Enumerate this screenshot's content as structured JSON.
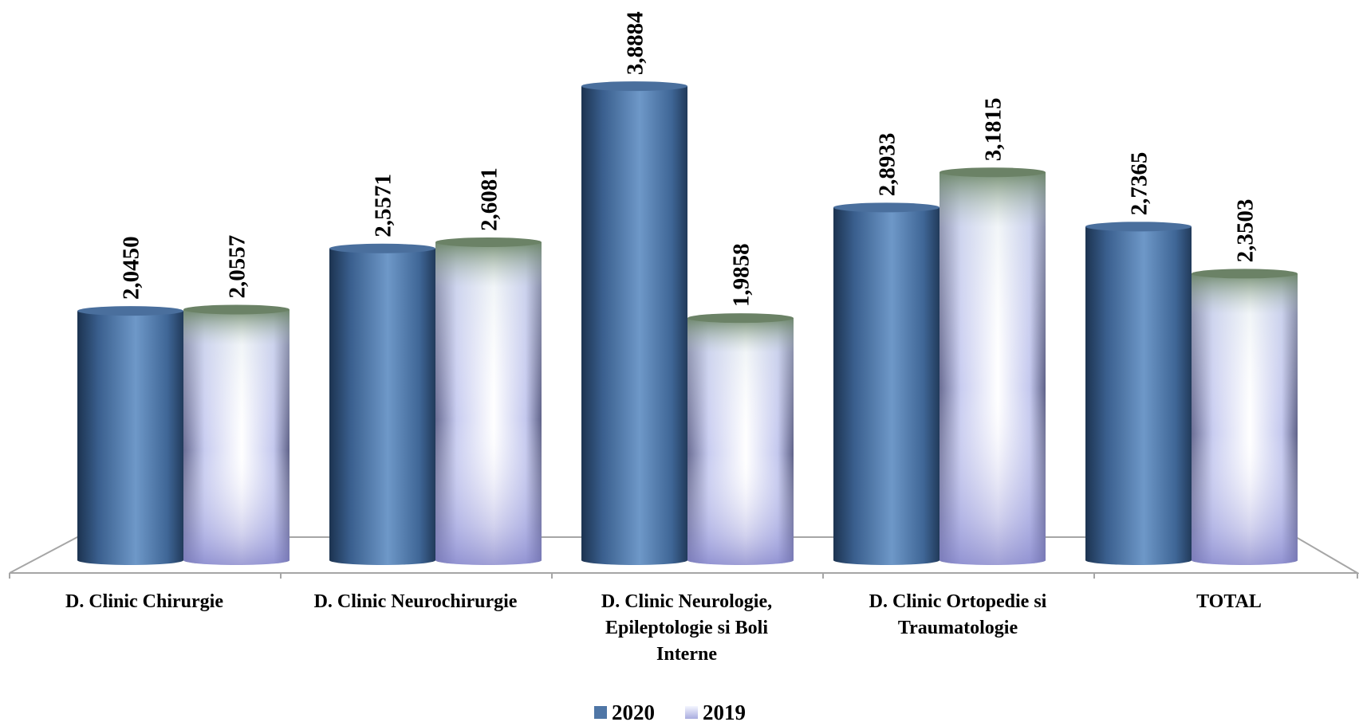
{
  "chart_data": {
    "type": "bar",
    "categories": [
      [
        "D. Clinic Chirurgie"
      ],
      [
        "D. Clinic Neurochirurgie"
      ],
      [
        "D. Clinic Neurologie,",
        "Epileptologie si Boli",
        "Interne"
      ],
      [
        "D. Clinic Ortopedie si",
        "Traumatologie"
      ],
      [
        "TOTAL"
      ]
    ],
    "series": [
      {
        "name": "2020",
        "values": [
          2.045,
          2.5571,
          3.8884,
          2.8933,
          2.7365
        ],
        "labels": [
          "2,0450",
          "2,5571",
          "3,8884",
          "2,8933",
          "2,7365"
        ],
        "color": "#4f76a6"
      },
      {
        "name": "2019",
        "values": [
          2.0557,
          2.6081,
          1.9858,
          3.1815,
          2.3503
        ],
        "labels": [
          "2,0557",
          "2,6081",
          "1,9858",
          "3,1815",
          "2,3503"
        ],
        "color": "#d8dcf8"
      }
    ],
    "legend": "bottom-center",
    "grid": false
  }
}
